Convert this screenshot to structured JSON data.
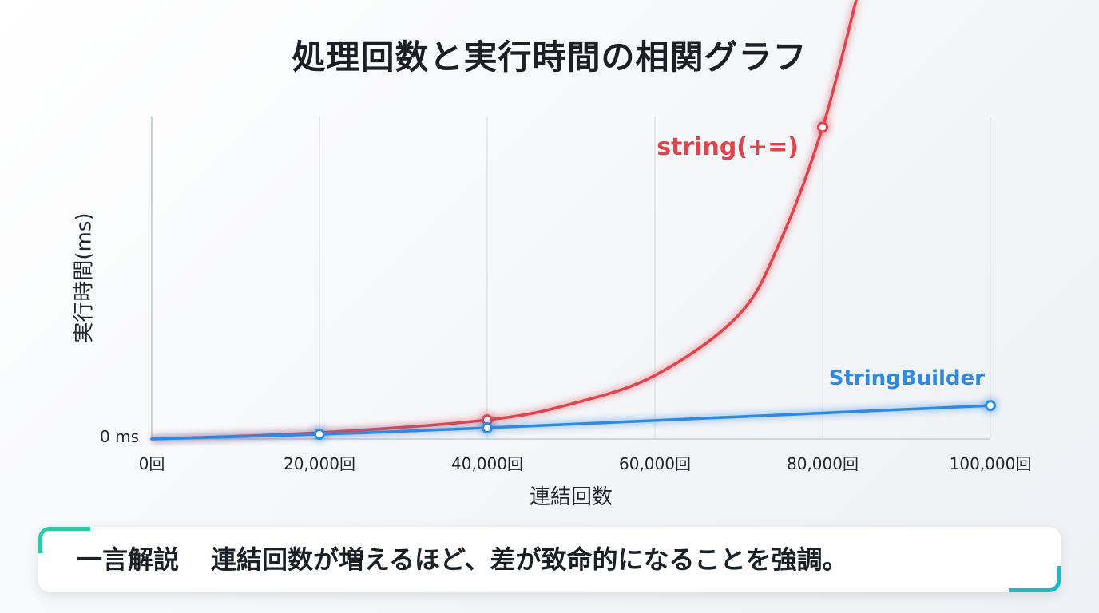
{
  "chart_data": {
    "type": "line",
    "title": "処理回数と実行時間の相関グラフ",
    "xlabel": "連結回数",
    "ylabel": "実行時間(ms)",
    "x_tick_labels": [
      "0回",
      "20,000回",
      "40,000回",
      "60,000回",
      "80,000回",
      "100,000回"
    ],
    "x_ticks": [
      0,
      20000,
      40000,
      60000,
      80000,
      100000
    ],
    "y_tick_labels": [
      "0 ms"
    ],
    "xlim": [
      0,
      100000
    ],
    "grid": "vertical",
    "series": [
      {
        "name": "string(+=)",
        "color": "#e0434b",
        "x": [
          0,
          20000,
          40000,
          50000,
          60000,
          70000,
          75000,
          80000,
          84000
        ],
        "y": [
          0,
          4,
          12,
          22,
          40,
          78,
          125,
          196,
          276
        ],
        "markers": [
          40000,
          80000
        ]
      },
      {
        "name": "StringBuilder",
        "color": "#2f89e0",
        "x": [
          0,
          20000,
          40000,
          100000
        ],
        "y": [
          0,
          3,
          7,
          21
        ],
        "markers": [
          20000,
          40000,
          100000
        ]
      }
    ]
  },
  "callout": {
    "label": "一言解説",
    "text": "連結回数が増えるほど、差が致命的になることを強調。"
  }
}
